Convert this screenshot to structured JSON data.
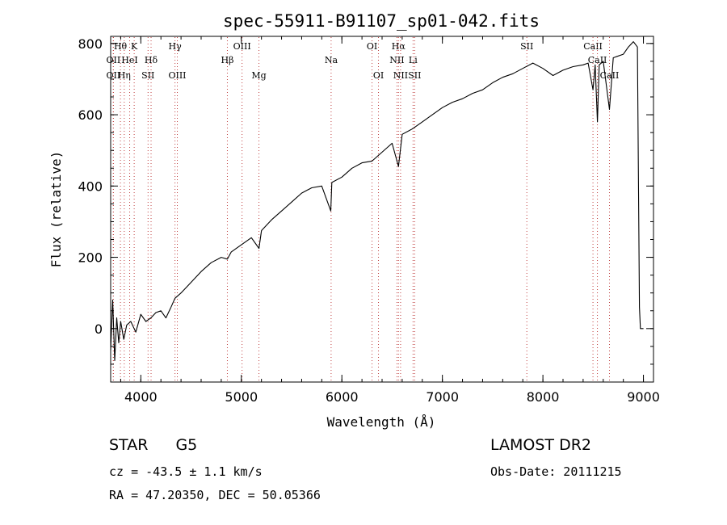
{
  "chart_data": {
    "type": "line",
    "title": "spec-55911-B91107_sp01-042.fits",
    "xlabel": "Wavelength (Å)",
    "ylabel": "Flux (relative)",
    "xlim": [
      3700,
      9100
    ],
    "ylim": [
      -150,
      820
    ],
    "xticks": [
      4000,
      5000,
      6000,
      7000,
      8000,
      9000
    ],
    "yticks": [
      0,
      200,
      400,
      600,
      800
    ],
    "grid": false,
    "line_color": "#000000",
    "marker_line_color": "#c04040",
    "spectrum": {
      "x": [
        3700,
        3720,
        3740,
        3760,
        3780,
        3800,
        3830,
        3860,
        3900,
        3950,
        4000,
        4050,
        4100,
        4150,
        4200,
        4250,
        4300,
        4340,
        4400,
        4500,
        4600,
        4700,
        4800,
        4861,
        4900,
        5000,
        5100,
        5175,
        5200,
        5300,
        5400,
        5500,
        5600,
        5700,
        5800,
        5890,
        5900,
        6000,
        6100,
        6200,
        6300,
        6400,
        6500,
        6563,
        6600,
        6700,
        6800,
        6900,
        7000,
        7100,
        7200,
        7300,
        7400,
        7500,
        7600,
        7700,
        7800,
        7900,
        8000,
        8100,
        8200,
        8300,
        8400,
        8450,
        8498,
        8520,
        8542,
        8560,
        8600,
        8662,
        8700,
        8800,
        8850,
        8900,
        8940,
        8960,
        8970,
        8980,
        9000
      ],
      "y": [
        -60,
        80,
        -90,
        30,
        -40,
        20,
        -30,
        10,
        20,
        -10,
        40,
        20,
        30,
        45,
        50,
        30,
        60,
        85,
        100,
        130,
        160,
        185,
        200,
        195,
        215,
        235,
        255,
        225,
        275,
        305,
        330,
        355,
        380,
        395,
        400,
        330,
        410,
        425,
        450,
        465,
        470,
        495,
        520,
        455,
        545,
        560,
        580,
        600,
        620,
        635,
        645,
        660,
        670,
        690,
        705,
        715,
        730,
        745,
        730,
        710,
        725,
        735,
        740,
        745,
        670,
        740,
        580,
        740,
        750,
        615,
        760,
        770,
        790,
        805,
        790,
        60,
        0,
        0,
        0
      ]
    },
    "lines": [
      {
        "label": "Hθ",
        "x": 3797,
        "row": 0
      },
      {
        "label": "K",
        "x": 3934,
        "row": 0
      },
      {
        "label": "OII",
        "x": 3727,
        "row": 1
      },
      {
        "label": "HeI",
        "x": 3889,
        "row": 1
      },
      {
        "label": "Hδ",
        "x": 4102,
        "row": 1
      },
      {
        "label": "OII",
        "x": 3727,
        "row": 2
      },
      {
        "label": "Hη",
        "x": 3835,
        "row": 2
      },
      {
        "label": "SII",
        "x": 4072,
        "row": 2
      },
      {
        "label": "Hγ",
        "x": 4340,
        "row": 0
      },
      {
        "label": "OIII",
        "x": 4363,
        "row": 2
      },
      {
        "label": "Hβ",
        "x": 4861,
        "row": 1
      },
      {
        "label": "OIII",
        "x": 5007,
        "row": 0
      },
      {
        "label": "Mg",
        "x": 5175,
        "row": 2
      },
      {
        "label": "Na",
        "x": 5893,
        "row": 1
      },
      {
        "label": "OI",
        "x": 6300,
        "row": 0
      },
      {
        "label": "OI",
        "x": 6364,
        "row": 2
      },
      {
        "label": "Hα",
        "x": 6563,
        "row": 0
      },
      {
        "label": "NII",
        "x": 6548,
        "row": 1
      },
      {
        "label": "Li",
        "x": 6708,
        "row": 1
      },
      {
        "label": "NII",
        "x": 6584,
        "row": 2
      },
      {
        "label": "SII",
        "x": 6724,
        "row": 2
      },
      {
        "label": "SII",
        "x": 7840,
        "row": 0
      },
      {
        "label": "CaII",
        "x": 8498,
        "row": 0
      },
      {
        "label": "CaII",
        "x": 8542,
        "row": 1
      },
      {
        "label": "CaII",
        "x": 8662,
        "row": 2
      }
    ]
  },
  "info": {
    "object_class": "STAR",
    "subclass": "G5",
    "survey": "LAMOST DR2",
    "redshift": "cz = -43.5 ± 1.1 km/s",
    "obs_date": "Obs-Date: 20111215",
    "coords": "RA =  47.20350, DEC =  50.05366"
  }
}
